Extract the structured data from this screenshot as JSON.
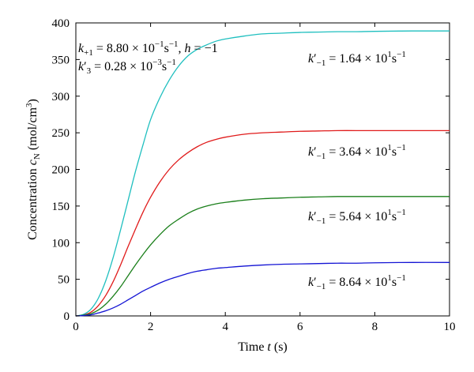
{
  "chart_data": {
    "type": "line",
    "xlabel": {
      "main": "Time ",
      "var": "t",
      "unit": " (s)"
    },
    "ylabel": {
      "main": "Concentration ",
      "var": "c",
      "sub": "N",
      "unit_open": " (mol/cm",
      "unit_sup": "3",
      "unit_close": ")"
    },
    "xlim": [
      0,
      10
    ],
    "ylim": [
      0,
      400
    ],
    "x_ticks": [
      "0",
      "2",
      "4",
      "6",
      "8",
      "10"
    ],
    "y_ticks": [
      "0",
      "50",
      "100",
      "150",
      "200",
      "250",
      "300",
      "350",
      "400"
    ],
    "grid": false,
    "legend": "none",
    "params": {
      "line1": {
        "k": "k",
        "sub": "+1",
        "eq": " = 8.80 × 10",
        "exp": "−1",
        "unit": "s",
        "unit_exp": "−1",
        "tail": ", ",
        "h": "h",
        "h_eq": " = −1"
      },
      "line2": {
        "k": "k",
        "prime": "′",
        "sub": "3",
        "eq": " = 0.28 × 10",
        "exp": "−3",
        "unit": "s",
        "unit_exp": "−1"
      }
    },
    "series": [
      {
        "color": "#1fbfbf",
        "label": {
          "k": "k",
          "prime": "′",
          "sub": "−1",
          "eq": " = 1.64 × 10",
          "exp": "1",
          "unit": "s",
          "unit_exp": "−1"
        },
        "x": [
          0,
          0.2,
          0.4,
          0.6,
          0.8,
          1.0,
          1.2,
          1.4,
          1.6,
          1.8,
          2.0,
          2.25,
          2.5,
          2.75,
          3.0,
          3.25,
          3.5,
          3.75,
          4.0,
          4.5,
          5.0,
          5.5,
          6.0,
          6.5,
          7.0,
          7.5,
          8.0,
          9.0,
          10.0
        ],
        "y": [
          0,
          2,
          9,
          24,
          48,
          80,
          118,
          158,
          198,
          234,
          268,
          298,
          322,
          341,
          355,
          364,
          370,
          375,
          378,
          382,
          385,
          386,
          387,
          387.5,
          388,
          388,
          388.5,
          389,
          389
        ]
      },
      {
        "color": "#e01b1b",
        "label": {
          "k": "k",
          "prime": "′",
          "sub": "−1",
          "eq": " = 3.64 × 10",
          "exp": "1",
          "unit": "s",
          "unit_exp": "−1"
        },
        "x": [
          0,
          0.2,
          0.4,
          0.6,
          0.8,
          1.0,
          1.2,
          1.4,
          1.6,
          1.8,
          2.0,
          2.25,
          2.5,
          2.75,
          3.0,
          3.25,
          3.5,
          3.75,
          4.0,
          4.5,
          5.0,
          5.5,
          6.0,
          6.5,
          7.0,
          7.5,
          8.0,
          9.0,
          10.0
        ],
        "y": [
          0,
          1,
          5,
          14,
          28,
          47,
          70,
          95,
          119,
          142,
          162,
          183,
          200,
          213,
          223,
          231,
          237,
          241,
          244,
          248,
          250,
          251,
          252,
          252.5,
          253,
          253,
          253,
          253,
          253
        ]
      },
      {
        "color": "#1a7f1a",
        "label": {
          "k": "k",
          "prime": "′",
          "sub": "−1",
          "eq": " = 5.64 × 10",
          "exp": "1",
          "unit": "s",
          "unit_exp": "−1"
        },
        "x": [
          0,
          0.2,
          0.4,
          0.6,
          0.8,
          1.0,
          1.2,
          1.4,
          1.6,
          1.8,
          2.0,
          2.25,
          2.5,
          2.75,
          3.0,
          3.25,
          3.5,
          3.75,
          4.0,
          4.5,
          5.0,
          5.5,
          6.0,
          6.5,
          7.0,
          7.5,
          8.0,
          9.0,
          10.0
        ],
        "y": [
          0,
          1,
          3,
          8,
          16,
          27,
          40,
          55,
          70,
          84,
          97,
          111,
          123,
          132,
          140,
          146,
          150,
          153,
          155,
          158,
          160,
          161,
          162,
          162.5,
          163,
          163,
          163,
          163,
          163
        ]
      },
      {
        "color": "#1414d4",
        "label": {
          "k": "k",
          "prime": "′",
          "sub": "−1",
          "eq": " = 8.64 × 10",
          "exp": "1",
          "unit": "s",
          "unit_exp": "−1"
        },
        "x": [
          0,
          0.2,
          0.4,
          0.6,
          0.8,
          1.0,
          1.2,
          1.4,
          1.6,
          1.8,
          2.0,
          2.25,
          2.5,
          2.75,
          3.0,
          3.25,
          3.5,
          3.75,
          4.0,
          4.5,
          5.0,
          5.5,
          6.0,
          6.5,
          7.0,
          7.5,
          8.0,
          9.0,
          10.0
        ],
        "y": [
          0,
          0.5,
          1.5,
          4,
          7,
          11,
          16,
          22,
          28,
          34,
          39,
          45,
          50,
          54,
          58,
          61,
          63,
          65,
          66,
          68,
          69.5,
          70.5,
          71,
          71.5,
          72,
          72,
          72.5,
          73,
          73
        ]
      }
    ]
  }
}
